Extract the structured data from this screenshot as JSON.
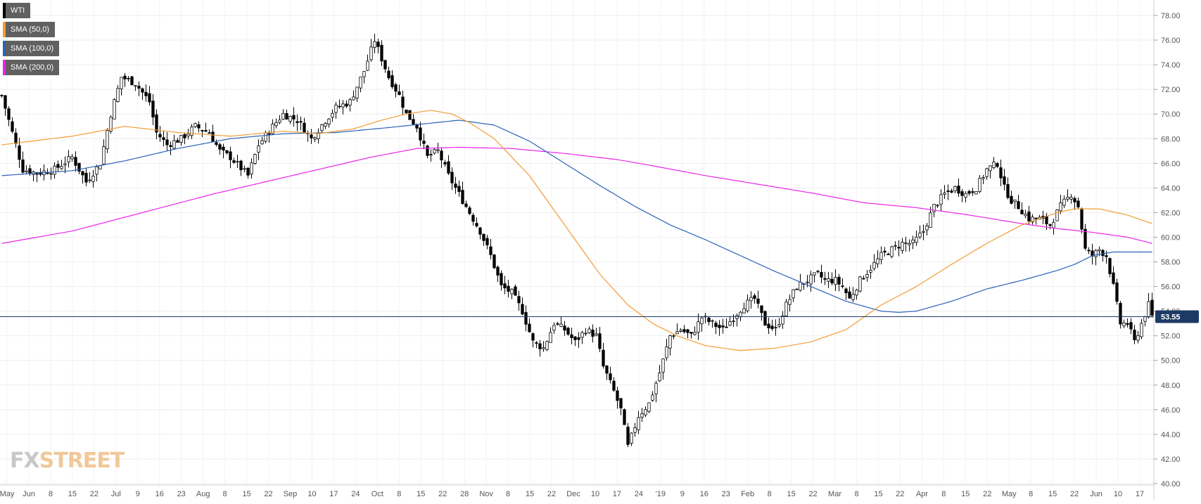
{
  "legend": [
    {
      "label": "WTI",
      "color": "#000000"
    },
    {
      "label": "SMA (50,0)",
      "color": "#f39c34"
    },
    {
      "label": "SMA (100,0)",
      "color": "#2a63b8"
    },
    {
      "label": "SMA (200,0)",
      "color": "#ea24ea"
    }
  ],
  "watermark": {
    "fx": "FX",
    "street": "STREET"
  },
  "price_tag": "53.55",
  "chart_data": {
    "type": "candlestick",
    "title": "",
    "ylim": [
      40,
      78
    ],
    "y_ticks": [
      "40.00",
      "42.00",
      "44.00",
      "46.00",
      "48.00",
      "50.00",
      "52.00",
      "54.00",
      "56.00",
      "58.00",
      "60.00",
      "62.00",
      "64.00",
      "66.00",
      "68.00",
      "70.00",
      "72.00",
      "74.00",
      "76.00",
      "78.00"
    ],
    "x_ticks": [
      "May",
      "Jun",
      "8",
      "15",
      "22",
      "Jul",
      "9",
      "16",
      "23",
      "Aug",
      "8",
      "15",
      "22",
      "Sep",
      "10",
      "17",
      "24",
      "Oct",
      "8",
      "15",
      "22",
      "28",
      "Nov",
      "8",
      "15",
      "22",
      "Dec",
      "10",
      "17",
      "24",
      "'19",
      "9",
      "16",
      "23",
      "Feb",
      "8",
      "15",
      "22",
      "Mar",
      "8",
      "15",
      "22",
      "Apr",
      "8",
      "15",
      "22",
      "May",
      "8",
      "15",
      "22",
      "Jun",
      "10",
      "17"
    ],
    "last_price": 53.55,
    "grid": true,
    "legend_position": "top-left",
    "series_colors": {
      "up": "#ffffff",
      "down": "#000000",
      "sma50": "#f39c34",
      "sma100": "#2a63b8",
      "sma200": "#ea24ea"
    },
    "price_keypoints": [
      [
        0,
        71.5
      ],
      [
        3,
        68.5
      ],
      [
        6,
        65.5
      ],
      [
        10,
        65.2
      ],
      [
        15,
        65.5
      ],
      [
        20,
        66.5
      ],
      [
        24,
        64.5
      ],
      [
        28,
        66.0
      ],
      [
        31,
        70.0
      ],
      [
        34,
        73.0
      ],
      [
        38,
        72.5
      ],
      [
        42,
        71.0
      ],
      [
        44,
        68.5
      ],
      [
        47,
        67.5
      ],
      [
        51,
        68.0
      ],
      [
        55,
        69.0
      ],
      [
        59,
        68.5
      ],
      [
        62,
        67.0
      ],
      [
        65,
        66.5
      ],
      [
        70,
        65.0
      ],
      [
        73,
        67.5
      ],
      [
        77,
        69.0
      ],
      [
        80,
        70.0
      ],
      [
        84,
        69.5
      ],
      [
        88,
        68.0
      ],
      [
        92,
        69.5
      ],
      [
        95,
        70.5
      ],
      [
        99,
        71.0
      ],
      [
        103,
        73.5
      ],
      [
        106,
        76.0
      ],
      [
        108,
        74.5
      ],
      [
        110,
        73.0
      ],
      [
        113,
        71.5
      ],
      [
        115,
        70.0
      ],
      [
        118,
        69.0
      ],
      [
        121,
        66.5
      ],
      [
        124,
        67.0
      ],
      [
        127,
        65.0
      ],
      [
        130,
        63.5
      ],
      [
        133,
        62.0
      ],
      [
        136,
        60.5
      ],
      [
        139,
        58.5
      ],
      [
        142,
        56.0
      ],
      [
        145,
        55.5
      ],
      [
        148,
        54.0
      ],
      [
        151,
        51.5
      ],
      [
        154,
        51.0
      ],
      [
        157,
        53.0
      ],
      [
        160,
        52.5
      ],
      [
        163,
        51.5
      ],
      [
        166,
        52.5
      ],
      [
        169,
        52.0
      ],
      [
        171,
        49.5
      ],
      [
        174,
        47.5
      ],
      [
        176,
        46.0
      ],
      [
        178,
        43.0
      ],
      [
        181,
        45.5
      ],
      [
        184,
        46.5
      ],
      [
        187,
        49.0
      ],
      [
        190,
        52.0
      ],
      [
        193,
        52.5
      ],
      [
        196,
        52.0
      ],
      [
        199,
        53.5
      ],
      [
        202,
        53.0
      ],
      [
        205,
        52.5
      ],
      [
        208,
        53.5
      ],
      [
        211,
        54.5
      ],
      [
        214,
        55.0
      ],
      [
        217,
        53.0
      ],
      [
        220,
        52.5
      ],
      [
        223,
        54.5
      ],
      [
        226,
        56.0
      ],
      [
        229,
        56.5
      ],
      [
        232,
        57.0
      ],
      [
        234,
        56.5
      ],
      [
        237,
        56.5
      ],
      [
        239,
        56.0
      ],
      [
        241,
        55.0
      ],
      [
        244,
        56.5
      ],
      [
        247,
        57.5
      ],
      [
        250,
        58.5
      ],
      [
        253,
        59.0
      ],
      [
        256,
        59.5
      ],
      [
        259,
        59.5
      ],
      [
        262,
        60.5
      ],
      [
        265,
        62.5
      ],
      [
        268,
        63.5
      ],
      [
        271,
        64.0
      ],
      [
        274,
        63.5
      ],
      [
        277,
        64.0
      ],
      [
        280,
        65.5
      ],
      [
        283,
        66.0
      ],
      [
        285,
        64.0
      ],
      [
        287,
        63.0
      ],
      [
        289,
        62.5
      ],
      [
        292,
        61.5
      ],
      [
        295,
        61.5
      ],
      [
        298,
        61.0
      ],
      [
        301,
        62.5
      ],
      [
        304,
        63.5
      ],
      [
        306,
        62.5
      ],
      [
        308,
        59.0
      ],
      [
        310,
        58.5
      ],
      [
        312,
        59.0
      ],
      [
        314,
        58.5
      ],
      [
        316,
        56.0
      ],
      [
        318,
        53.0
      ],
      [
        320,
        53.0
      ],
      [
        322,
        51.5
      ],
      [
        324,
        53.0
      ],
      [
        326,
        54.5
      ],
      [
        327,
        53.55
      ]
    ],
    "sma50_keypoints": [
      [
        0,
        67.5
      ],
      [
        20,
        68.2
      ],
      [
        35,
        69.0
      ],
      [
        50,
        68.5
      ],
      [
        65,
        68.2
      ],
      [
        80,
        68.6
      ],
      [
        90,
        68.4
      ],
      [
        100,
        68.8
      ],
      [
        108,
        69.5
      ],
      [
        115,
        70.0
      ],
      [
        122,
        70.3
      ],
      [
        128,
        70.0
      ],
      [
        133,
        69.3
      ],
      [
        140,
        68.0
      ],
      [
        150,
        65.0
      ],
      [
        160,
        61.0
      ],
      [
        170,
        57.0
      ],
      [
        178,
        54.5
      ],
      [
        185,
        53.0
      ],
      [
        192,
        52.0
      ],
      [
        200,
        51.2
      ],
      [
        210,
        50.8
      ],
      [
        220,
        51.0
      ],
      [
        230,
        51.5
      ],
      [
        240,
        52.5
      ],
      [
        250,
        54.5
      ],
      [
        260,
        56.0
      ],
      [
        270,
        57.8
      ],
      [
        280,
        59.5
      ],
      [
        290,
        61.0
      ],
      [
        300,
        62.0
      ],
      [
        305,
        62.3
      ],
      [
        312,
        62.3
      ],
      [
        320,
        61.8
      ],
      [
        327,
        61.1
      ]
    ],
    "sma100_keypoints": [
      [
        0,
        65.0
      ],
      [
        20,
        65.4
      ],
      [
        35,
        66.2
      ],
      [
        50,
        67.2
      ],
      [
        65,
        68.0
      ],
      [
        80,
        68.4
      ],
      [
        95,
        68.5
      ],
      [
        110,
        68.9
      ],
      [
        120,
        69.2
      ],
      [
        130,
        69.5
      ],
      [
        140,
        69.1
      ],
      [
        150,
        67.8
      ],
      [
        160,
        66.0
      ],
      [
        170,
        64.2
      ],
      [
        180,
        62.5
      ],
      [
        190,
        61.0
      ],
      [
        200,
        59.8
      ],
      [
        210,
        58.5
      ],
      [
        220,
        57.2
      ],
      [
        230,
        56.0
      ],
      [
        240,
        54.8
      ],
      [
        250,
        54.0
      ],
      [
        255,
        53.9
      ],
      [
        260,
        54.0
      ],
      [
        270,
        54.8
      ],
      [
        280,
        55.8
      ],
      [
        290,
        56.5
      ],
      [
        300,
        57.3
      ],
      [
        305,
        57.8
      ],
      [
        310,
        58.5
      ],
      [
        316,
        58.8
      ],
      [
        320,
        58.8
      ],
      [
        327,
        58.8
      ]
    ],
    "sma200_keypoints": [
      [
        0,
        59.5
      ],
      [
        20,
        60.5
      ],
      [
        40,
        62.0
      ],
      [
        60,
        63.5
      ],
      [
        75,
        64.5
      ],
      [
        90,
        65.5
      ],
      [
        105,
        66.5
      ],
      [
        118,
        67.2
      ],
      [
        130,
        67.3
      ],
      [
        145,
        67.2
      ],
      [
        160,
        66.8
      ],
      [
        175,
        66.3
      ],
      [
        185,
        65.8
      ],
      [
        200,
        65.0
      ],
      [
        215,
        64.3
      ],
      [
        230,
        63.6
      ],
      [
        245,
        62.8
      ],
      [
        260,
        62.4
      ],
      [
        275,
        61.8
      ],
      [
        290,
        61.1
      ],
      [
        300,
        60.7
      ],
      [
        310,
        60.4
      ],
      [
        320,
        60.0
      ],
      [
        327,
        59.5
      ]
    ],
    "bar_count": 328
  }
}
